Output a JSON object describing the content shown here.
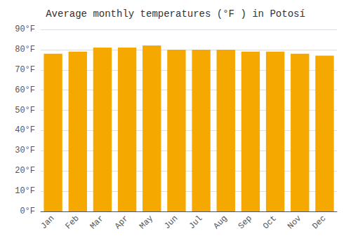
{
  "chart_data": {
    "type": "bar",
    "title": "Average monthly temperatures (°F ) in Potosí",
    "categories": [
      "Jan",
      "Feb",
      "Mar",
      "Apr",
      "May",
      "Jun",
      "Jul",
      "Aug",
      "Sep",
      "Oct",
      "Nov",
      "Dec"
    ],
    "values": [
      78,
      79,
      81,
      81,
      82,
      80,
      80,
      80,
      79,
      79,
      78,
      77
    ],
    "color": "#F5A800",
    "ylim": [
      0,
      90
    ],
    "yticks": [
      {
        "value": 0,
        "label": "0°F"
      },
      {
        "value": 10,
        "label": "10°F"
      },
      {
        "value": 20,
        "label": "20°F"
      },
      {
        "value": 30,
        "label": "30°F"
      },
      {
        "value": 40,
        "label": "40°F"
      },
      {
        "value": 50,
        "label": "50°F"
      },
      {
        "value": 60,
        "label": "60°F"
      },
      {
        "value": 70,
        "label": "70°F"
      },
      {
        "value": 80,
        "label": "80°F"
      },
      {
        "value": 90,
        "label": "90°F"
      }
    ],
    "grid": true
  }
}
